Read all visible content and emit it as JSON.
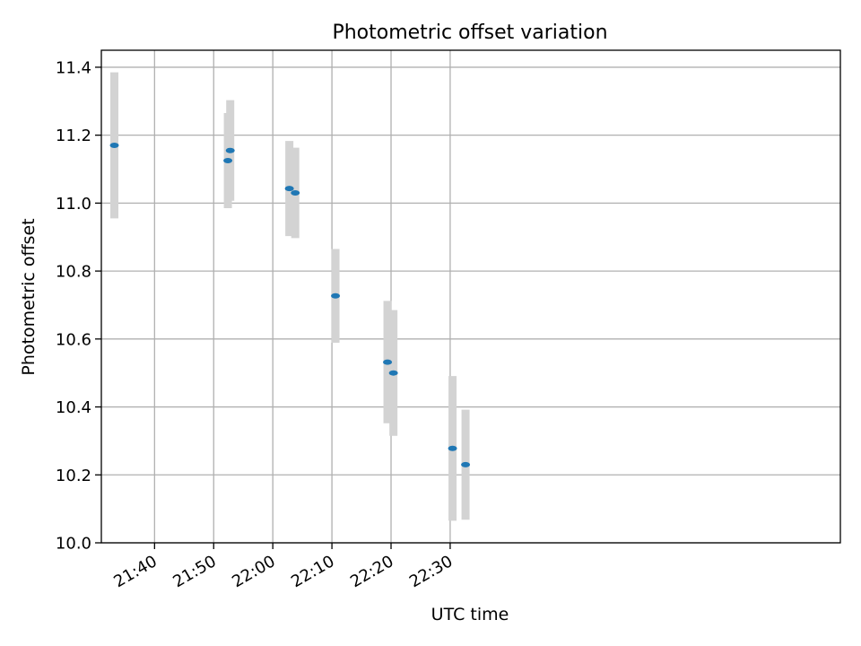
{
  "chart_data": {
    "type": "scatter",
    "title": "Photometric offset variation",
    "xlabel": "UTC time",
    "ylabel": "Photometric offset",
    "xlim": [
      1291,
      1416
    ],
    "ylim": [
      10.0,
      11.45
    ],
    "x_unit": "minutes since 00:00 UTC",
    "xticks": [
      {
        "value": 1300,
        "label": "21:40"
      },
      {
        "value": 1310,
        "label": "21:50"
      },
      {
        "value": 1320,
        "label": "22:00"
      },
      {
        "value": 1330,
        "label": "22:10"
      },
      {
        "value": 1340,
        "label": "22:20"
      },
      {
        "value": 1350,
        "label": "22:30"
      }
    ],
    "yticks": [
      {
        "value": 10.0,
        "label": "10.0"
      },
      {
        "value": 10.2,
        "label": "10.2"
      },
      {
        "value": 10.4,
        "label": "10.4"
      },
      {
        "value": 10.6,
        "label": "10.6"
      },
      {
        "value": 10.8,
        "label": "10.8"
      },
      {
        "value": 11.0,
        "label": "11.0"
      },
      {
        "value": 11.2,
        "label": "11.2"
      },
      {
        "value": 11.4,
        "label": "11.4"
      }
    ],
    "grid": true,
    "marker_color": "#1f77b4",
    "errorbar_color": "#d3d3d3",
    "points": [
      {
        "x": 1293.2,
        "y": 11.17,
        "yerr": 0.215
      },
      {
        "x": 1312.4,
        "y": 11.125,
        "yerr": 0.14
      },
      {
        "x": 1312.8,
        "y": 11.155,
        "yerr": 0.148
      },
      {
        "x": 1322.8,
        "y": 11.043,
        "yerr": 0.14
      },
      {
        "x": 1323.8,
        "y": 11.03,
        "yerr": 0.133
      },
      {
        "x": 1330.6,
        "y": 10.727,
        "yerr": 0.138
      },
      {
        "x": 1339.4,
        "y": 10.532,
        "yerr": 0.18
      },
      {
        "x": 1340.4,
        "y": 10.5,
        "yerr": 0.185
      },
      {
        "x": 1350.4,
        "y": 10.278,
        "yerr": 0.213
      },
      {
        "x": 1352.6,
        "y": 10.23,
        "yerr": 0.162
      }
    ]
  }
}
